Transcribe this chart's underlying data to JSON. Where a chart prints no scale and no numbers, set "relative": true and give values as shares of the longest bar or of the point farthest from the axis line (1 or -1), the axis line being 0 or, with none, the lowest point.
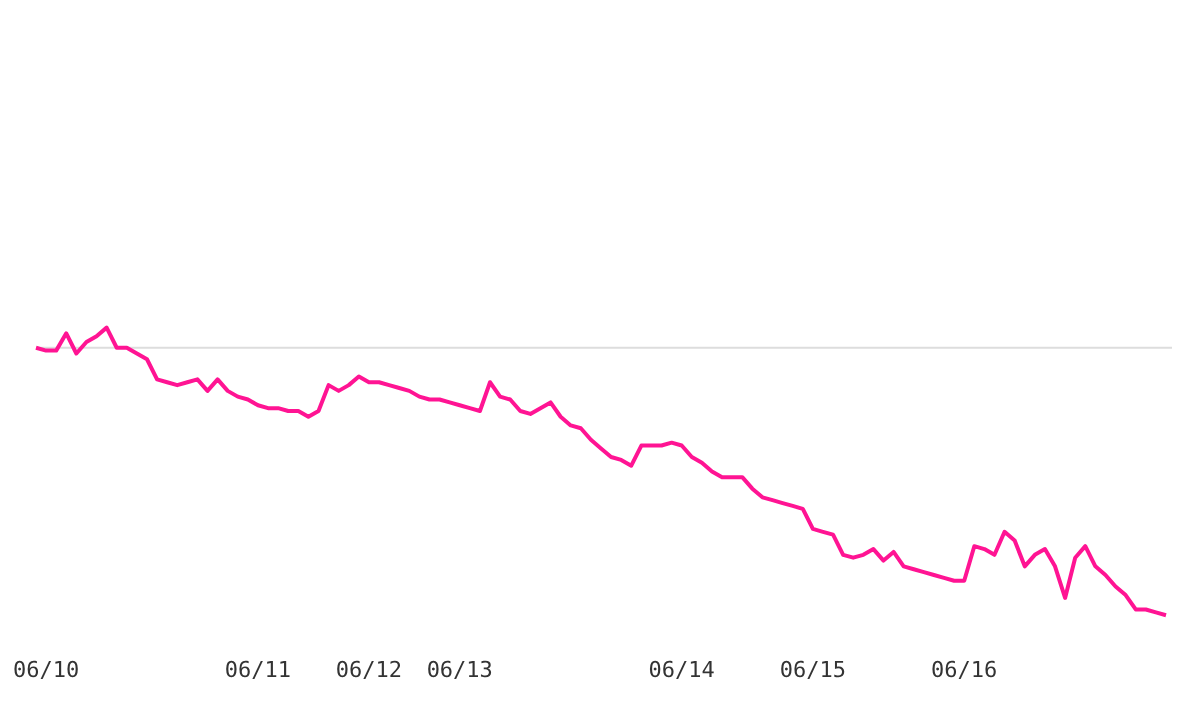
{
  "chart_data": {
    "type": "line",
    "relative": true,
    "grid": false,
    "legend": false,
    "marker": "none",
    "line_style": "solid",
    "categories": [
      null,
      "06/10",
      null,
      null,
      null,
      null,
      null,
      null,
      null,
      null,
      null,
      null,
      null,
      null,
      null,
      null,
      null,
      null,
      null,
      null,
      null,
      null,
      "06/11",
      null,
      null,
      null,
      null,
      null,
      null,
      null,
      null,
      null,
      null,
      "06/12",
      null,
      null,
      null,
      null,
      null,
      null,
      null,
      null,
      "06/13",
      null,
      null,
      null,
      null,
      null,
      null,
      null,
      null,
      null,
      null,
      null,
      null,
      null,
      null,
      null,
      null,
      null,
      null,
      null,
      null,
      null,
      "06/14",
      null,
      null,
      null,
      null,
      null,
      null,
      null,
      null,
      null,
      null,
      null,
      null,
      "06/15",
      null,
      null,
      null,
      null,
      null,
      null,
      null,
      null,
      null,
      null,
      null,
      null,
      null,
      null,
      "06/16",
      null,
      null,
      null,
      null,
      null,
      null,
      null,
      null,
      null,
      null,
      null,
      null,
      null,
      null,
      null,
      null,
      null,
      null,
      null,
      null
    ],
    "series": [
      {
        "color": "#ff1493",
        "values": [
          0.93,
          0.92,
          0.92,
          0.98,
          0.91,
          0.95,
          0.97,
          1,
          0.93,
          0.93,
          0.91,
          0.89,
          0.82,
          0.81,
          0.8,
          0.81,
          0.82,
          0.78,
          0.82,
          0.78,
          0.76,
          0.75,
          0.73,
          0.72,
          0.72,
          0.71,
          0.71,
          0.69,
          0.71,
          0.8,
          0.78,
          0.8,
          0.83,
          0.81,
          0.81,
          0.8,
          0.79,
          0.78,
          0.76,
          0.75,
          0.75,
          0.74,
          0.73,
          0.72,
          0.71,
          0.81,
          0.76,
          0.75,
          0.71,
          0.7,
          0.72,
          0.74,
          0.69,
          0.66,
          0.65,
          0.61,
          0.58,
          0.55,
          0.54,
          0.52,
          0.59,
          0.59,
          0.59,
          0.6,
          0.59,
          0.55,
          0.53,
          0.5,
          0.48,
          0.48,
          0.48,
          0.44,
          0.41,
          0.4,
          0.39,
          0.38,
          0.37,
          0.3,
          0.29,
          0.28,
          0.21,
          0.2,
          0.21,
          0.23,
          0.19,
          0.22,
          0.17,
          0.16,
          0.15,
          0.14,
          0.13,
          0.12,
          0.12,
          0.24,
          0.23,
          0.21,
          0.29,
          0.26,
          0.17,
          0.21,
          0.23,
          0.17,
          0.06,
          0.2,
          0.24,
          0.17,
          0.14,
          0.1,
          0.07,
          0.02,
          0.02,
          0.01,
          0
        ]
      }
    ],
    "ref_lines": [
      {
        "axis": "y",
        "value": 0.93,
        "color": "#dddddd"
      }
    ]
  }
}
